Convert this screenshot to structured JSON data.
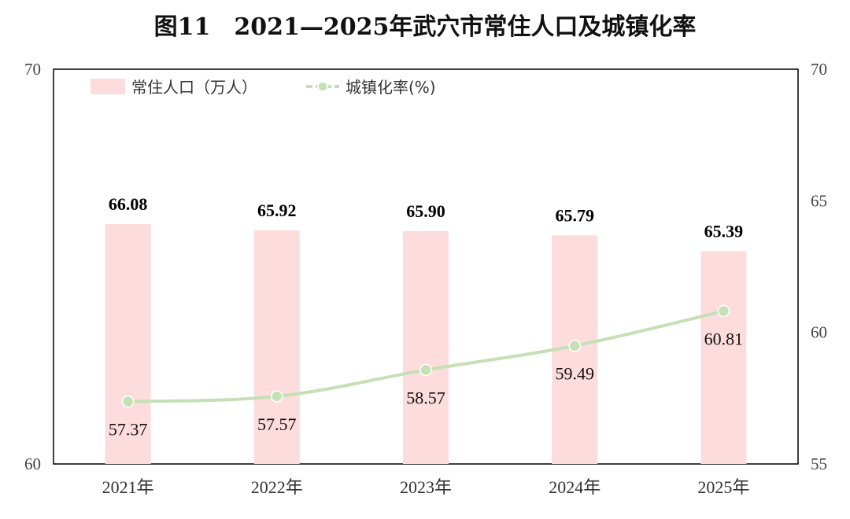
{
  "title": "图11　2021—2025年武穴市常住人口及城镇化率",
  "legend": {
    "bar_label": "常住人口（万人）",
    "line_label": "城镇化率(%)"
  },
  "colors": {
    "bar": "#fddcde",
    "line": "#c5e0b5",
    "marker_stroke": "#ffffff",
    "frame": "#000000"
  },
  "chart_data": {
    "type": "bar",
    "title": "图11　2021—2025年武穴市常住人口及城镇化率",
    "categories": [
      "2021年",
      "2022年",
      "2023年",
      "2024年",
      "2025年"
    ],
    "series": [
      {
        "name": "常住人口（万人）",
        "type": "bar",
        "axis": "left",
        "values": [
          66.08,
          65.92,
          65.9,
          65.79,
          65.39
        ]
      },
      {
        "name": "城镇化率(%)",
        "type": "line",
        "axis": "right",
        "values": [
          57.37,
          57.57,
          58.57,
          59.49,
          60.81
        ]
      }
    ],
    "ylim_left": [
      60,
      70
    ],
    "yticks_left": [
      60,
      70
    ],
    "ylim_right": [
      55,
      70
    ],
    "yticks_right": [
      55,
      60,
      65,
      70
    ],
    "grid": false,
    "legend_position": "top-left"
  }
}
